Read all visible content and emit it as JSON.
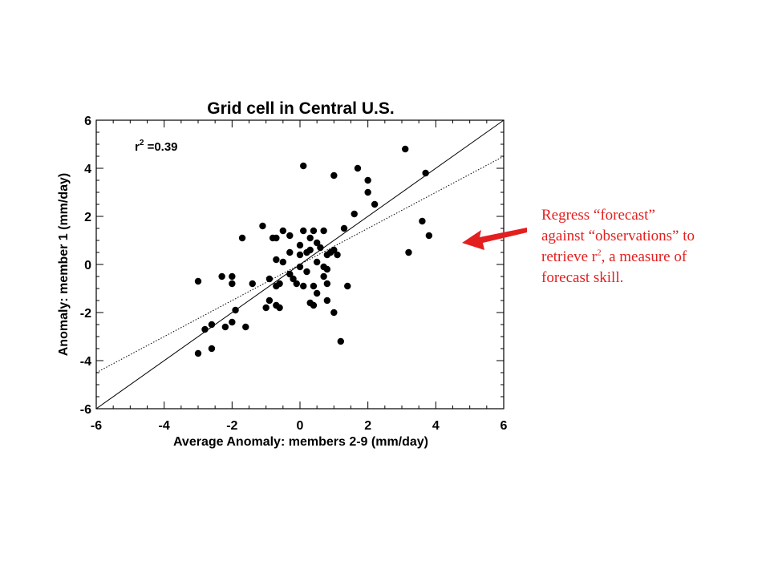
{
  "chart_data": {
    "type": "scatter",
    "title": "Grid cell in Central U.S.",
    "xlabel": "Average Anomaly: members 2-9 (mm/day)",
    "ylabel": "Anomaly: member 1 (mm/day)",
    "xlim": [
      -6,
      6
    ],
    "ylim": [
      -6,
      6
    ],
    "xticks": [
      -6,
      -4,
      -2,
      0,
      2,
      4,
      6
    ],
    "yticks": [
      -6,
      -4,
      -2,
      0,
      2,
      4,
      6
    ],
    "x_tick_labels": [
      "-6",
      "-4",
      "-2",
      "0",
      "2",
      "4",
      "6"
    ],
    "y_tick_labels": [
      "-6",
      "-4",
      "-2",
      "0",
      "2",
      "4",
      "6"
    ],
    "annotation": {
      "r_label": "r",
      "r_exp": "2",
      "r_value": " =0.39"
    },
    "reference_lines": [
      {
        "name": "1:1 line",
        "style": "solid",
        "x": [
          -6,
          6
        ],
        "y": [
          -6,
          6
        ]
      },
      {
        "name": "regression fit",
        "style": "dotted",
        "x": [
          -6,
          6
        ],
        "y": [
          -4.5,
          4.5
        ]
      }
    ],
    "grid": false,
    "marker_color": "#000000",
    "points": [
      [
        -3.0,
        -0.7
      ],
      [
        -3.0,
        -3.7
      ],
      [
        -2.8,
        -2.7
      ],
      [
        -2.6,
        -2.5
      ],
      [
        -2.6,
        -3.5
      ],
      [
        -2.3,
        -0.5
      ],
      [
        -2.2,
        -2.6
      ],
      [
        -2.0,
        -0.5
      ],
      [
        -2.0,
        -0.8
      ],
      [
        -2.0,
        -2.4
      ],
      [
        -1.9,
        -1.9
      ],
      [
        -1.7,
        1.1
      ],
      [
        -1.6,
        -2.6
      ],
      [
        -1.4,
        -0.8
      ],
      [
        -1.1,
        1.6
      ],
      [
        -1.0,
        -1.8
      ],
      [
        -0.9,
        -0.6
      ],
      [
        -0.9,
        -1.5
      ],
      [
        -0.8,
        1.1
      ],
      [
        -0.7,
        1.1
      ],
      [
        -0.7,
        -0.9
      ],
      [
        -0.7,
        0.2
      ],
      [
        -0.7,
        -1.7
      ],
      [
        -0.6,
        -1.8
      ],
      [
        -0.6,
        -0.8
      ],
      [
        -0.5,
        0.1
      ],
      [
        -0.5,
        1.4
      ],
      [
        -0.3,
        1.2
      ],
      [
        -0.3,
        0.5
      ],
      [
        -0.3,
        -0.4
      ],
      [
        -0.2,
        -0.6
      ],
      [
        -0.1,
        -0.8
      ],
      [
        0.0,
        0.4
      ],
      [
        0.0,
        -0.1
      ],
      [
        0.0,
        0.8
      ],
      [
        0.1,
        1.4
      ],
      [
        0.1,
        -0.9
      ],
      [
        0.1,
        4.1
      ],
      [
        0.2,
        0.5
      ],
      [
        0.2,
        -0.3
      ],
      [
        0.3,
        -1.6
      ],
      [
        0.3,
        0.6
      ],
      [
        0.3,
        1.1
      ],
      [
        0.4,
        -1.7
      ],
      [
        0.4,
        -0.9
      ],
      [
        0.4,
        1.4
      ],
      [
        0.5,
        0.9
      ],
      [
        0.5,
        0.1
      ],
      [
        0.5,
        -1.2
      ],
      [
        0.6,
        0.7
      ],
      [
        0.7,
        -0.1
      ],
      [
        0.7,
        -0.5
      ],
      [
        0.7,
        1.4
      ],
      [
        0.8,
        0.4
      ],
      [
        0.8,
        -0.2
      ],
      [
        0.8,
        -0.8
      ],
      [
        0.8,
        -1.5
      ],
      [
        0.9,
        0.5
      ],
      [
        1.0,
        -2.0
      ],
      [
        1.0,
        0.6
      ],
      [
        1.0,
        3.7
      ],
      [
        1.1,
        0.4
      ],
      [
        1.2,
        -3.2
      ],
      [
        1.3,
        1.5
      ],
      [
        1.4,
        -0.9
      ],
      [
        1.6,
        2.1
      ],
      [
        1.7,
        4.0
      ],
      [
        2.0,
        3.0
      ],
      [
        2.0,
        3.5
      ],
      [
        2.2,
        2.5
      ],
      [
        3.1,
        4.8
      ],
      [
        3.2,
        0.5
      ],
      [
        3.6,
        1.8
      ],
      [
        3.7,
        3.8
      ],
      [
        3.8,
        1.2
      ]
    ]
  },
  "callout": {
    "line1": "Regress “forecast”",
    "line2": "against “observations” to",
    "line3a": "retrieve r",
    "line3_sup": "2",
    "line3b": ", a measure of",
    "line4": "forecast skill.",
    "color": "#e41f1f"
  }
}
